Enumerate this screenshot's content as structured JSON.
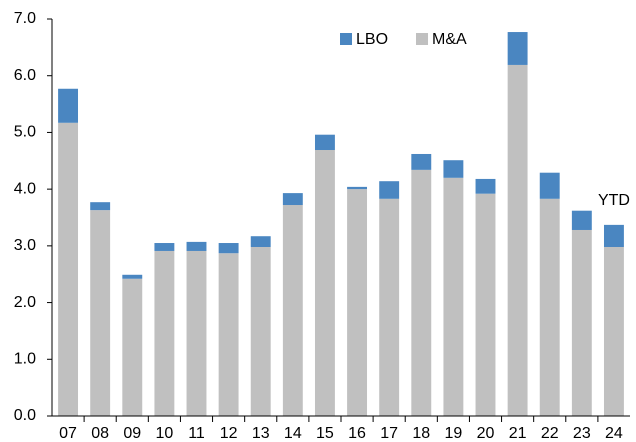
{
  "chart_data": {
    "type": "bar",
    "stacked": true,
    "categories": [
      "07",
      "08",
      "09",
      "10",
      "11",
      "12",
      "13",
      "14",
      "15",
      "16",
      "17",
      "18",
      "19",
      "20",
      "21",
      "22",
      "23",
      "24"
    ],
    "series": [
      {
        "name": "LBO",
        "color": "#4a86c1",
        "values": [
          0.6,
          0.14,
          0.07,
          0.14,
          0.16,
          0.18,
          0.19,
          0.21,
          0.27,
          0.04,
          0.31,
          0.28,
          0.31,
          0.26,
          0.58,
          0.46,
          0.34,
          0.39
        ]
      },
      {
        "name": "M&A",
        "color": "#c0c0c0",
        "values": [
          5.17,
          3.63,
          2.42,
          2.91,
          2.91,
          2.87,
          2.98,
          3.72,
          4.69,
          4.0,
          3.83,
          4.34,
          4.2,
          3.92,
          6.19,
          3.83,
          3.28,
          2.98
        ]
      }
    ],
    "annotation": "YTD",
    "ylim": [
      0,
      7
    ],
    "yticks": [
      {
        "value": 0,
        "label": "0.0"
      },
      {
        "value": 1,
        "label": "1.0"
      },
      {
        "value": 2,
        "label": "2.0"
      },
      {
        "value": 3,
        "label": "3.0"
      },
      {
        "value": 4,
        "label": "4.0"
      },
      {
        "value": 5,
        "label": "5.0"
      },
      {
        "value": 6,
        "label": "6.0"
      },
      {
        "value": 7,
        "label": "7.0"
      }
    ],
    "grid": false,
    "legend": "top"
  }
}
